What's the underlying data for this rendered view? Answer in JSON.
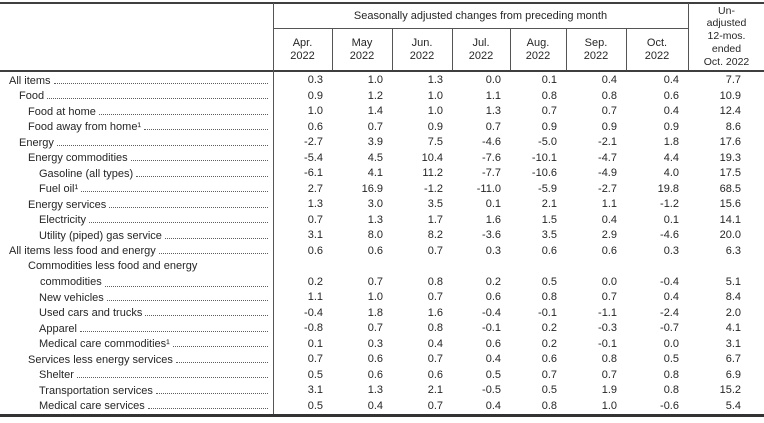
{
  "table": {
    "span_header": "Seasonally adjusted changes from preceding month",
    "unadjusted_header_lines": [
      "Un-",
      "adjusted",
      "12-mos.",
      "ended",
      "Oct. 2022"
    ],
    "month_columns": [
      {
        "month": "Apr.",
        "year": "2022"
      },
      {
        "month": "May",
        "year": "2022"
      },
      {
        "month": "Jun.",
        "year": "2022"
      },
      {
        "month": "Jul.",
        "year": "2022"
      },
      {
        "month": "Aug.",
        "year": "2022"
      },
      {
        "month": "Sep.",
        "year": "2022"
      },
      {
        "month": "Oct.",
        "year": "2022"
      }
    ],
    "rows": [
      {
        "label": "All items",
        "indent": 0,
        "values": [
          "0.3",
          "1.0",
          "1.3",
          "0.0",
          "0.1",
          "0.4",
          "0.4",
          "7.7"
        ]
      },
      {
        "label": "Food",
        "indent": 1,
        "values": [
          "0.9",
          "1.2",
          "1.0",
          "1.1",
          "0.8",
          "0.8",
          "0.6",
          "10.9"
        ]
      },
      {
        "label": "Food at home",
        "indent": 2,
        "values": [
          "1.0",
          "1.4",
          "1.0",
          "1.3",
          "0.7",
          "0.7",
          "0.4",
          "12.4"
        ]
      },
      {
        "label": "Food away from home¹",
        "indent": 2,
        "values": [
          "0.6",
          "0.7",
          "0.9",
          "0.7",
          "0.9",
          "0.9",
          "0.9",
          "8.6"
        ]
      },
      {
        "label": "Energy",
        "indent": 1,
        "values": [
          "-2.7",
          "3.9",
          "7.5",
          "-4.6",
          "-5.0",
          "-2.1",
          "1.8",
          "17.6"
        ]
      },
      {
        "label": "Energy commodities",
        "indent": 2,
        "values": [
          "-5.4",
          "4.5",
          "10.4",
          "-7.6",
          "-10.1",
          "-4.7",
          "4.4",
          "19.3"
        ]
      },
      {
        "label": "Gasoline (all types)",
        "indent": 3,
        "values": [
          "-6.1",
          "4.1",
          "11.2",
          "-7.7",
          "-10.6",
          "-4.9",
          "4.0",
          "17.5"
        ]
      },
      {
        "label": "Fuel oil¹",
        "indent": 3,
        "values": [
          "2.7",
          "16.9",
          "-1.2",
          "-11.0",
          "-5.9",
          "-2.7",
          "19.8",
          "68.5"
        ]
      },
      {
        "label": "Energy services",
        "indent": 2,
        "values": [
          "1.3",
          "3.0",
          "3.5",
          "0.1",
          "2.1",
          "1.1",
          "-1.2",
          "15.6"
        ]
      },
      {
        "label": "Electricity",
        "indent": 3,
        "values": [
          "0.7",
          "1.3",
          "1.7",
          "1.6",
          "1.5",
          "0.4",
          "0.1",
          "14.1"
        ]
      },
      {
        "label": "Utility (piped) gas service",
        "indent": 3,
        "values": [
          "3.1",
          "8.0",
          "8.2",
          "-3.6",
          "3.5",
          "2.9",
          "-4.6",
          "20.0"
        ]
      },
      {
        "label": "All items less food and energy",
        "indent": 0,
        "values": [
          "0.6",
          "0.6",
          "0.7",
          "0.3",
          "0.6",
          "0.6",
          "0.3",
          "6.3"
        ]
      },
      {
        "label": "Commodities less food and energy commodities",
        "label_line1": "Commodities less food and energy",
        "label_line2": "commodities",
        "indent": 2,
        "values": [
          "0.2",
          "0.7",
          "0.8",
          "0.2",
          "0.5",
          "0.0",
          "-0.4",
          "5.1"
        ]
      },
      {
        "label": "New vehicles",
        "indent": 3,
        "values": [
          "1.1",
          "1.0",
          "0.7",
          "0.6",
          "0.8",
          "0.7",
          "0.4",
          "8.4"
        ]
      },
      {
        "label": "Used cars and trucks",
        "indent": 3,
        "values": [
          "-0.4",
          "1.8",
          "1.6",
          "-0.4",
          "-0.1",
          "-1.1",
          "-2.4",
          "2.0"
        ]
      },
      {
        "label": "Apparel",
        "indent": 3,
        "values": [
          "-0.8",
          "0.7",
          "0.8",
          "-0.1",
          "0.2",
          "-0.3",
          "-0.7",
          "4.1"
        ]
      },
      {
        "label": "Medical care commodities¹",
        "indent": 3,
        "values": [
          "0.1",
          "0.3",
          "0.4",
          "0.6",
          "0.2",
          "-0.1",
          "0.0",
          "3.1"
        ]
      },
      {
        "label": "Services less energy services",
        "indent": 2,
        "values": [
          "0.7",
          "0.6",
          "0.7",
          "0.4",
          "0.6",
          "0.8",
          "0.5",
          "6.7"
        ]
      },
      {
        "label": "Shelter",
        "indent": 3,
        "values": [
          "0.5",
          "0.6",
          "0.6",
          "0.5",
          "0.7",
          "0.7",
          "0.8",
          "6.9"
        ]
      },
      {
        "label": "Transportation services",
        "indent": 3,
        "values": [
          "3.1",
          "1.3",
          "2.1",
          "-0.5",
          "0.5",
          "1.9",
          "0.8",
          "15.2"
        ]
      },
      {
        "label": "Medical care services",
        "indent": 3,
        "values": [
          "0.5",
          "0.4",
          "0.7",
          "0.4",
          "0.8",
          "1.0",
          "-0.6",
          "5.4"
        ]
      }
    ]
  }
}
